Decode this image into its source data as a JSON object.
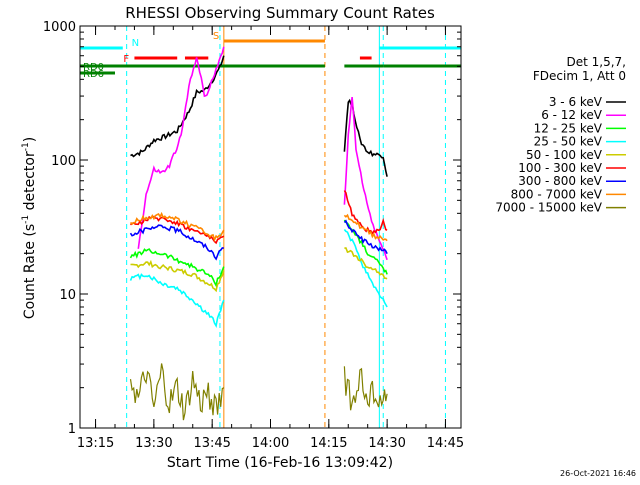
{
  "chart_data": {
    "type": "line",
    "title": "RHESSI Observing Summary Count Rates",
    "xlabel": "Start Time (16-Feb-16 13:09:42)",
    "ylabel_main": "Count Rate (s",
    "ylabel_sup1": "-1",
    "ylabel_mid": " detector",
    "ylabel_sup2": "-1",
    "ylabel_end": ")",
    "y_scale": "log",
    "ylim": [
      1,
      1000
    ],
    "xlim": [
      "13:11",
      "14:49"
    ],
    "x_ticks": [
      "13:15",
      "13:30",
      "13:45",
      "14:00",
      "14:15",
      "14:30",
      "14:45"
    ],
    "y_ticks": [
      "1",
      "10",
      "100",
      "1000"
    ],
    "legend_header": [
      "Det 1,5,7,",
      "FDecim 1, Att 0"
    ],
    "legend_position": "right",
    "series": [
      {
        "name": "3 - 6 keV",
        "color": "#000000",
        "segments": [
          {
            "t": [
              "13:24",
              "13:27",
              "13:30",
              "13:33",
              "13:36",
              "13:39",
              "13:41",
              "13:43",
              "13:45",
              "13:47",
              "13:48"
            ],
            "v": [
              108,
              115,
              140,
              150,
              165,
              230,
              320,
              330,
              390,
              490,
              600
            ]
          },
          {
            "t": [
              "14:19",
              "14:20",
              "14:21",
              "14:23",
              "14:25",
              "14:27",
              "14:29",
              "14:30"
            ],
            "v": [
              120,
              280,
              260,
              140,
              115,
              110,
              108,
              75
            ]
          }
        ]
      },
      {
        "name": "6 - 12 keV",
        "color": "#ff00ff",
        "segments": [
          {
            "t": [
              "13:26",
              "13:28",
              "13:30",
              "13:32",
              "13:34",
              "13:37",
              "13:39",
              "13:41",
              "13:43",
              "13:44",
              "13:46",
              "13:48"
            ],
            "v": [
              22,
              55,
              85,
              80,
              90,
              150,
              350,
              600,
              300,
              320,
              480,
              700
            ]
          },
          {
            "t": [
              "14:19",
              "14:20",
              "14:21",
              "14:22",
              "14:24",
              "14:26",
              "14:28",
              "14:30"
            ],
            "v": [
              45,
              150,
              300,
              120,
              60,
              35,
              25,
              18
            ]
          }
        ]
      },
      {
        "name": "12 - 25 keV",
        "color": "#00ff00",
        "segments": [
          {
            "t": [
              "13:24",
              "13:28",
              "13:32",
              "13:36",
              "13:40",
              "13:44",
              "13:46",
              "13:48"
            ],
            "v": [
              19,
              21,
              20,
              18,
              16,
              14,
              12,
              16
            ]
          },
          {
            "t": [
              "14:19",
              "14:21",
              "14:23",
              "14:25",
              "14:27",
              "14:29",
              "14:30"
            ],
            "v": [
              35,
              30,
              25,
              20,
              18,
              16,
              14
            ]
          }
        ]
      },
      {
        "name": "25 - 50 keV",
        "color": "#00ffff",
        "segments": [
          {
            "t": [
              "13:24",
              "13:28",
              "13:32",
              "13:36",
              "13:40",
              "13:44",
              "13:46",
              "13:48"
            ],
            "v": [
              13,
              14,
              12,
              11,
              9,
              7,
              6,
              9
            ]
          },
          {
            "t": [
              "14:19",
              "14:21",
              "14:23",
              "14:25",
              "14:27",
              "14:29",
              "14:30"
            ],
            "v": [
              30,
              25,
              18,
              14,
              11,
              9,
              8
            ]
          }
        ]
      },
      {
        "name": "50 - 100 keV",
        "color": "#cccc00",
        "segments": [
          {
            "t": [
              "13:24",
              "13:28",
              "13:32",
              "13:36",
              "13:40",
              "13:44",
              "13:46",
              "13:48"
            ],
            "v": [
              16,
              17,
              16,
              15,
              14,
              12,
              11,
              15
            ]
          },
          {
            "t": [
              "14:19",
              "14:21",
              "14:23",
              "14:25",
              "14:27",
              "14:29",
              "14:30"
            ],
            "v": [
              22,
              20,
              18,
              16,
              15,
              14,
              13
            ]
          }
        ]
      },
      {
        "name": "100 - 300 keV",
        "color": "#ff0000",
        "segments": [
          {
            "t": [
              "13:24",
              "13:28",
              "13:32",
              "13:36",
              "13:40",
              "13:44",
              "13:46",
              "13:48"
            ],
            "v": [
              32,
              36,
              37,
              34,
              30,
              27,
              25,
              27
            ]
          },
          {
            "t": [
              "14:19",
              "14:21",
              "14:23",
              "14:25",
              "14:27",
              "14:29",
              "14:30"
            ],
            "v": [
              60,
              40,
              33,
              30,
              28,
              34,
              30
            ]
          }
        ]
      },
      {
        "name": "300 - 800 keV",
        "color": "#0000ff",
        "segments": [
          {
            "t": [
              "13:24",
              "13:28",
              "13:32",
              "13:36",
              "13:40",
              "13:44",
              "13:46",
              "13:48"
            ],
            "v": [
              28,
              30,
              32,
              30,
              26,
              22,
              19,
              22
            ]
          },
          {
            "t": [
              "14:19",
              "14:21",
              "14:23",
              "14:25",
              "14:27",
              "14:29",
              "14:30"
            ],
            "v": [
              35,
              30,
              26,
              24,
              22,
              21,
              20
            ]
          }
        ]
      },
      {
        "name": "800 - 7000 keV",
        "color": "#ff8800",
        "segments": [
          {
            "t": [
              "13:24",
              "13:28",
              "13:32",
              "13:36",
              "13:40",
              "13:44",
              "13:46",
              "13:48"
            ],
            "v": [
              34,
              37,
              39,
              36,
              32,
              28,
              26,
              30
            ]
          },
          {
            "t": [
              "14:19",
              "14:21",
              "14:23",
              "14:25",
              "14:27",
              "14:29",
              "14:30"
            ],
            "v": [
              40,
              36,
              32,
              29,
              27,
              26,
              25
            ]
          }
        ]
      },
      {
        "name": "7000 - 15000 keV",
        "color": "#808000",
        "segments": [
          {
            "t": [
              "13:24",
              "13:26",
              "13:28",
              "13:30",
              "13:32",
              "13:34",
              "13:36",
              "13:38",
              "13:40",
              "13:42",
              "13:44",
              "13:46",
              "13:48"
            ],
            "v": [
              2.4,
              1.6,
              2.6,
              1.4,
              2.6,
              1.5,
              2.0,
              1.3,
              2.3,
              1.5,
              1.9,
              1.3,
              2.0
            ]
          },
          {
            "t": [
              "14:19",
              "14:21",
              "14:23",
              "14:25",
              "14:27",
              "14:29",
              "14:30"
            ],
            "v": [
              2.3,
              1.6,
              2.4,
              1.5,
              2.0,
              1.4,
              1.8
            ]
          }
        ]
      }
    ],
    "flags": [
      {
        "label": "RD0",
        "color": "#008000",
        "segments": [
          [
            "13:11",
            "13:47"
          ],
          [
            "13:47",
            "14:14"
          ],
          [
            "14:19",
            "14:29"
          ],
          [
            "14:29",
            "14:49"
          ]
        ]
      },
      {
        "label": "RD6",
        "color": "#008000",
        "segments": [
          [
            "13:11",
            "13:20"
          ]
        ]
      },
      {
        "label": "N",
        "color": "#00ffff",
        "segments": [
          [
            "13:11",
            "13:22"
          ],
          [
            "14:28",
            "14:49"
          ]
        ]
      },
      {
        "label": "F",
        "color": "#ff0000",
        "segments": [
          [
            "13:25",
            "13:36"
          ],
          [
            "13:38",
            "13:44"
          ],
          [
            "14:23",
            "14:26"
          ]
        ]
      },
      {
        "label": "S",
        "color": "#ff8800",
        "segments": [
          [
            "13:48",
            "14:14"
          ]
        ]
      }
    ],
    "vlines": [
      {
        "t": "13:11",
        "color": "#00ffff",
        "style": "solid"
      },
      {
        "t": "13:23",
        "color": "#00ffff",
        "style": "dashed"
      },
      {
        "t": "13:47",
        "color": "#00ffff",
        "style": "dashed"
      },
      {
        "t": "13:48",
        "color": "#ff8800",
        "style": "solid"
      },
      {
        "t": "14:14",
        "color": "#ff8800",
        "style": "dashed"
      },
      {
        "t": "14:28",
        "color": "#00ffff",
        "style": "solid"
      },
      {
        "t": "14:29",
        "color": "#00ffff",
        "style": "dashed"
      },
      {
        "t": "14:45",
        "color": "#00ffff",
        "style": "dashed"
      }
    ]
  },
  "footer_date": "26-Oct-2021 16:46"
}
